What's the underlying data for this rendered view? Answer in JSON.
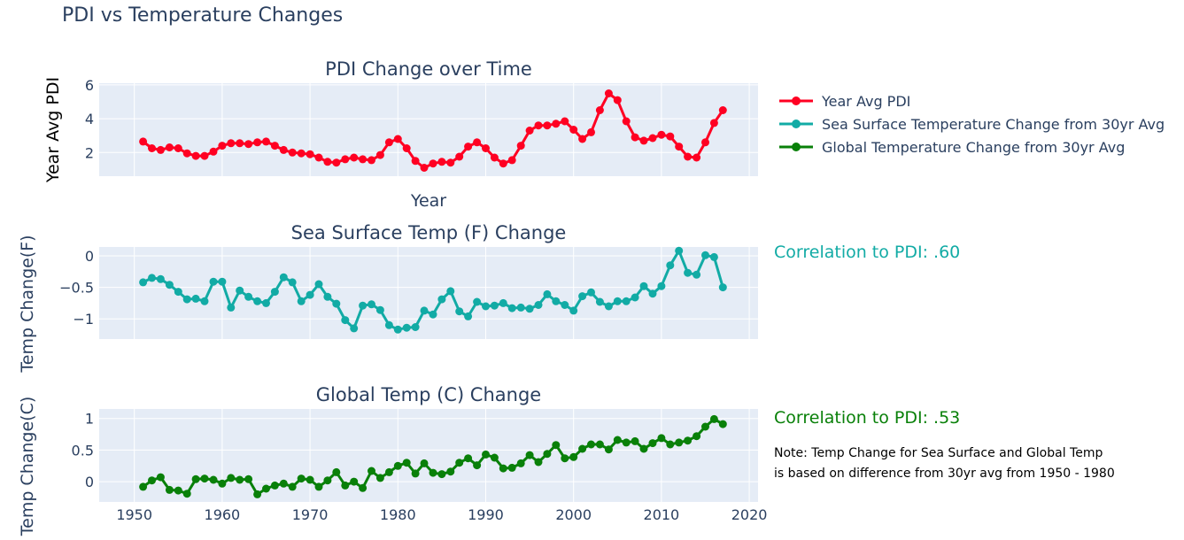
{
  "title": "PDI vs Temperature Changes",
  "colors": {
    "pdi": "#ff0022",
    "sst": "#12aba5",
    "global": "#098009",
    "panel_bg": "#e5ecf6"
  },
  "legend": [
    "Year Avg PDI",
    "Sea Surface Temperature Change from 30yr Avg",
    "Global Temperature Change from 30yr Avg"
  ],
  "annotations": {
    "corr_sst": "Correlation to PDI: .60",
    "corr_global": "Correlation to PDI: .53",
    "note_line1": "Note: Temp Change for Sea Surface and Global Temp",
    "note_line2": "is based on difference from 30yr avg from 1950 - 1980"
  },
  "chart_data": [
    {
      "type": "line",
      "title": "PDI Change over Time",
      "xlabel": "Year",
      "ylabel": "Year Avg PDI",
      "series_name": "Year Avg PDI",
      "xlim": [
        1946,
        2021
      ],
      "ylim": [
        0.6,
        6.1
      ],
      "xticks": [
        1950,
        1960,
        1970,
        1980,
        1990,
        2000,
        2010,
        2020
      ],
      "yticks": [
        2,
        4,
        6
      ],
      "x_start": 1951,
      "values": [
        2.65,
        2.25,
        2.15,
        2.3,
        2.25,
        1.95,
        1.8,
        1.8,
        2.05,
        2.4,
        2.55,
        2.55,
        2.5,
        2.6,
        2.65,
        2.4,
        2.15,
        2.0,
        1.95,
        1.9,
        1.7,
        1.45,
        1.4,
        1.6,
        1.7,
        1.6,
        1.55,
        1.85,
        2.6,
        2.8,
        2.25,
        1.5,
        1.1,
        1.35,
        1.45,
        1.4,
        1.75,
        2.35,
        2.6,
        2.25,
        1.7,
        1.35,
        1.55,
        2.4,
        3.3,
        3.6,
        3.6,
        3.7,
        3.85,
        3.35,
        2.8,
        3.2,
        4.5,
        5.5,
        5.1,
        3.85,
        2.9,
        2.7,
        2.85,
        3.05,
        2.95,
        2.35,
        1.75,
        1.7,
        2.6,
        3.75,
        4.5
      ]
    },
    {
      "type": "line",
      "title": "Sea Surface Temp (F) Change",
      "xlabel": "",
      "ylabel": "Temp Change(F)",
      "series_name": "Sea Surface Temperature Change from 30yr Avg",
      "xlim": [
        1946,
        2021
      ],
      "ylim": [
        -1.32,
        0.14
      ],
      "xticks": [
        1950,
        1960,
        1970,
        1980,
        1990,
        2000,
        2010,
        2020
      ],
      "yticks": [
        0,
        -0.5,
        -1
      ],
      "ytick_labels": [
        "0",
        "−0.5",
        "−1"
      ],
      "x_start": 1951,
      "values": [
        -0.42,
        -0.35,
        -0.37,
        -0.46,
        -0.57,
        -0.69,
        -0.68,
        -0.72,
        -0.41,
        -0.41,
        -0.82,
        -0.55,
        -0.65,
        -0.72,
        -0.75,
        -0.57,
        -0.34,
        -0.42,
        -0.72,
        -0.62,
        -0.45,
        -0.65,
        -0.76,
        -1.02,
        -1.15,
        -0.79,
        -0.77,
        -0.86,
        -1.1,
        -1.17,
        -1.14,
        -1.13,
        -0.87,
        -0.93,
        -0.69,
        -0.56,
        -0.88,
        -0.96,
        -0.73,
        -0.8,
        -0.79,
        -0.75,
        -0.83,
        -0.82,
        -0.84,
        -0.78,
        -0.61,
        -0.72,
        -0.78,
        -0.87,
        -0.64,
        -0.58,
        -0.73,
        -0.8,
        -0.72,
        -0.72,
        -0.66,
        -0.48,
        -0.6,
        -0.48,
        -0.15,
        0.08,
        -0.27,
        -0.3,
        0.01,
        -0.02,
        -0.5
      ]
    },
    {
      "type": "line",
      "title": "Global Temp (C) Change",
      "xlabel": "",
      "ylabel": "Temp Change(C)",
      "series_name": "Global Temperature Change from 30yr Avg",
      "xlim": [
        1946,
        2021
      ],
      "ylim": [
        -0.32,
        1.15
      ],
      "xticks": [
        1950,
        1960,
        1970,
        1980,
        1990,
        2000,
        2010,
        2020
      ],
      "yticks": [
        1,
        0.5,
        0
      ],
      "ytick_labels": [
        "1",
        "0.5",
        "0"
      ],
      "x_start": 1951,
      "values": [
        -0.08,
        0.02,
        0.07,
        -0.13,
        -0.14,
        -0.19,
        0.04,
        0.05,
        0.03,
        -0.03,
        0.06,
        0.03,
        0.04,
        -0.2,
        -0.11,
        -0.06,
        -0.03,
        -0.08,
        0.05,
        0.03,
        -0.08,
        0.02,
        0.15,
        -0.06,
        0.0,
        -0.1,
        0.17,
        0.06,
        0.15,
        0.25,
        0.3,
        0.13,
        0.29,
        0.14,
        0.12,
        0.16,
        0.3,
        0.37,
        0.26,
        0.43,
        0.38,
        0.21,
        0.22,
        0.29,
        0.42,
        0.31,
        0.44,
        0.58,
        0.37,
        0.39,
        0.52,
        0.59,
        0.59,
        0.51,
        0.66,
        0.62,
        0.64,
        0.52,
        0.61,
        0.69,
        0.59,
        0.62,
        0.65,
        0.72,
        0.87,
        0.99,
        0.91
      ]
    }
  ]
}
